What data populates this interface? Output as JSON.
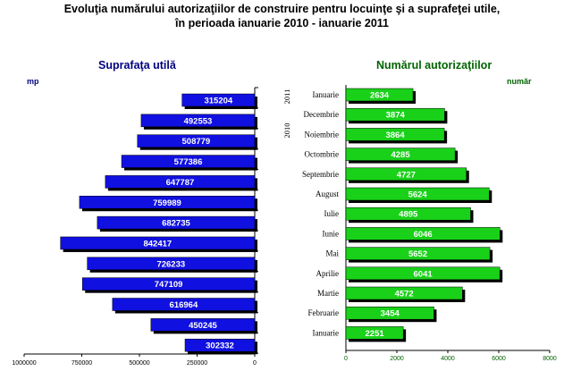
{
  "title_line1": "Evoluţia numărului autorizaţiilor de construire pentru locuinţe şi  a suprafeţei utile,",
  "title_line2": "în perioada ianuarie 2010  - ianuarie 2011",
  "colors": {
    "left_bar": "#1010e0",
    "right_bar": "#19d119",
    "shadow": "#000000",
    "left_title": "#000080",
    "right_title": "#006400",
    "right_ticks": "#006400"
  },
  "chart_data": [
    {
      "type": "bar",
      "orientation": "horizontal",
      "title": "Suprafaţa utilă",
      "unit_label": "mp",
      "x_direction": "reversed",
      "xlim": [
        0,
        1000000
      ],
      "xticks": [
        1000000,
        750000,
        500000,
        250000,
        0
      ],
      "xtick_labels": [
        "1000000",
        "750000",
        "500000",
        "250000",
        "0"
      ],
      "values": [
        315204,
        492553,
        508779,
        577386,
        647787,
        759989,
        682735,
        842417,
        726233,
        747109,
        616964,
        450245,
        302332
      ],
      "labels": [
        "315204",
        "492553",
        "508779",
        "577386",
        "647787",
        "759989",
        "682735",
        "842417",
        "726233",
        "747109",
        "616964",
        "450245",
        "302332"
      ]
    },
    {
      "type": "bar",
      "orientation": "horizontal",
      "title": "Numărul autorizaţiilor",
      "unit_label": "număr",
      "xlim": [
        0,
        8000
      ],
      "xticks": [
        0,
        2000,
        4000,
        6000,
        8000
      ],
      "xtick_labels": [
        "0",
        "2000",
        "4000",
        "6000",
        "8000"
      ],
      "categories": [
        "Ianuarie",
        "Decembrie",
        "Noiembrie",
        "Octombrie",
        "Septembrie",
        "August",
        "Iulie",
        "Iunie",
        "Mai",
        "Aprilie",
        "Martie",
        "Februarie",
        "Ianuarie"
      ],
      "values": [
        2634,
        3874,
        3864,
        4285,
        4727,
        5624,
        4895,
        6046,
        5652,
        6041,
        4572,
        3454,
        2251
      ],
      "labels": [
        "2634",
        "3874",
        "3864",
        "4285",
        "4727",
        "5624",
        "4895",
        "6046",
        "5652",
        "6041",
        "4572",
        "3454",
        "2251"
      ],
      "year_labels": [
        "2011",
        "2010"
      ]
    }
  ]
}
